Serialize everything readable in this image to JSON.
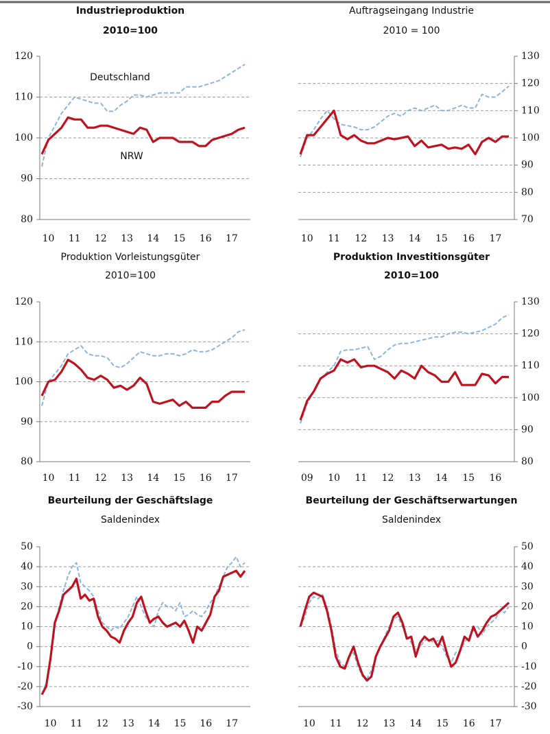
{
  "chart_data": [
    {
      "type": "line",
      "title": "Industrieproduktion",
      "subtitle": "2010=100",
      "categories": [
        null,
        "10",
        null,
        null,
        null,
        "11",
        null,
        null,
        null,
        "12",
        null,
        null,
        null,
        "13",
        null,
        null,
        null,
        "14",
        null,
        null,
        null,
        "15",
        null,
        null,
        null,
        "16",
        null,
        null,
        null,
        "17",
        null,
        null
      ],
      "series": [
        {
          "name": "Deutschland",
          "color": "#8ab4e0",
          "line_style": "dashed",
          "values": [
            93,
            100,
            103,
            106,
            108,
            110,
            109.5,
            109,
            108.5,
            108.5,
            106.5,
            106.5,
            108,
            109,
            110.5,
            110.5,
            110,
            110.5,
            111,
            111,
            111,
            111,
            112.5,
            112.5,
            112.5,
            113,
            113.5,
            114,
            115,
            116,
            117,
            118
          ]
        },
        {
          "name": "NRW",
          "color": "#c0111f",
          "line_style": "solid",
          "values": [
            96,
            99.5,
            101,
            102.5,
            105,
            104.5,
            104.5,
            102.5,
            102.5,
            103,
            103,
            102.5,
            102,
            101.5,
            101,
            102.5,
            102,
            99,
            100,
            100,
            100,
            99,
            99,
            99,
            98,
            98,
            99.5,
            100,
            100.5,
            101,
            102,
            102.5
          ]
        }
      ],
      "ylim": [
        80,
        120
      ],
      "yticks": [
        80,
        90,
        100,
        110,
        120
      ],
      "grid": true,
      "y_axis_side": "left"
    },
    {
      "type": "line",
      "title": "Auftragseingang Industrie",
      "subtitle": "2010 = 100",
      "categories": [
        null,
        "10",
        null,
        null,
        null,
        "11",
        null,
        null,
        null,
        "12",
        null,
        null,
        null,
        "13",
        null,
        null,
        null,
        "14",
        null,
        null,
        null,
        "15",
        null,
        null,
        null,
        "16",
        null,
        null,
        null,
        "17",
        null,
        null
      ],
      "series": [
        {
          "color": "#8ab4e0",
          "line_style": "dashed",
          "values": [
            93,
            100,
            103,
            107,
            110,
            107,
            105,
            104.5,
            104,
            103,
            103,
            104,
            106,
            108,
            109,
            108,
            110,
            111,
            110,
            111,
            112,
            110,
            110,
            111,
            112,
            111,
            111,
            116,
            115,
            115,
            117,
            119
          ]
        },
        {
          "color": "#c0111f",
          "line_style": "solid",
          "values": [
            94,
            101,
            101,
            104,
            107,
            110,
            101,
            99.5,
            101,
            99,
            98,
            98,
            99,
            100,
            99.5,
            100,
            100.5,
            97,
            99,
            96.5,
            97,
            97.5,
            96,
            96.5,
            96,
            97.5,
            94,
            98.5,
            100,
            98.5,
            100.5,
            100.5
          ]
        }
      ],
      "ylim": [
        70,
        130
      ],
      "yticks": [
        70,
        80,
        90,
        100,
        110,
        120,
        130
      ],
      "grid": true,
      "y_axis_side": "right"
    },
    {
      "type": "line",
      "title": "Produktion Vorleistungsgüter",
      "subtitle": "2010=100",
      "categories": [
        null,
        "10",
        null,
        null,
        null,
        "11",
        null,
        null,
        null,
        "12",
        null,
        null,
        null,
        "13",
        null,
        null,
        null,
        "14",
        null,
        null,
        null,
        "15",
        null,
        null,
        null,
        "16",
        null,
        null,
        null,
        "17",
        null,
        null
      ],
      "series": [
        {
          "color": "#8ab4e0",
          "line_style": "dashed",
          "values": [
            94,
            100,
            102,
            104,
            107,
            108,
            109,
            107,
            106.5,
            106.5,
            106,
            104,
            103.5,
            104.5,
            106,
            107.5,
            107,
            106.5,
            106.5,
            107,
            107,
            106.5,
            107,
            108,
            107.5,
            107.5,
            108,
            109,
            110,
            111,
            112.5,
            113
          ]
        },
        {
          "color": "#c0111f",
          "line_style": "solid",
          "values": [
            96.5,
            100,
            100.5,
            102.5,
            105.5,
            104.5,
            103,
            101,
            100.5,
            101.5,
            100.5,
            98.5,
            99,
            98,
            99,
            101,
            99.5,
            95,
            94.5,
            95,
            95.5,
            94,
            95,
            93.5,
            93.5,
            93.5,
            95,
            95,
            96.5,
            97.5,
            97.5,
            97.5
          ]
        }
      ],
      "ylim": [
        80,
        120
      ],
      "yticks": [
        80,
        90,
        100,
        110,
        120
      ],
      "grid": true,
      "y_axis_side": "left"
    },
    {
      "type": "line",
      "title": "Produktion Investitionsgüter",
      "subtitle": "2010=100",
      "categories": [
        null,
        "09",
        null,
        null,
        null,
        "10",
        null,
        null,
        null,
        "11",
        null,
        null,
        null,
        "12",
        null,
        null,
        null,
        "13",
        null,
        null,
        null,
        "14",
        null,
        null,
        null,
        "15",
        null,
        null,
        null,
        "16",
        null,
        null
      ],
      "series": [
        {
          "color": "#8ab4e0",
          "line_style": "dashed",
          "values": [
            92,
            98,
            102,
            106,
            108,
            110,
            114.5,
            115,
            115,
            115.5,
            116,
            112,
            113,
            115,
            116.5,
            117,
            117,
            117.5,
            118,
            118.5,
            119,
            119,
            120,
            120.5,
            120.5,
            120,
            120.5,
            121,
            122,
            123,
            125,
            126
          ]
        },
        {
          "color": "#c0111f",
          "line_style": "solid",
          "values": [
            93,
            99,
            102,
            106,
            107.5,
            108.5,
            112,
            111,
            112,
            109.5,
            110,
            110,
            109,
            108,
            106,
            108.5,
            107.5,
            106,
            110,
            108,
            107,
            105,
            105,
            108,
            104,
            104,
            104,
            107.5,
            107,
            104.5,
            106.5,
            106.5
          ]
        }
      ],
      "ylim": [
        80,
        130
      ],
      "yticks": [
        80,
        90,
        100,
        110,
        120,
        130
      ],
      "grid": true,
      "y_axis_side": "right"
    },
    {
      "type": "line",
      "title": "Beurteilung der Geschäftslage",
      "subtitle": "Saldenindex",
      "categories": [
        null,
        null,
        "10",
        null,
        null,
        null,
        null,
        null,
        "11",
        null,
        null,
        null,
        null,
        null,
        "12",
        null,
        null,
        null,
        null,
        null,
        "13",
        null,
        null,
        null,
        null,
        null,
        "14",
        null,
        null,
        null,
        null,
        null,
        "15",
        null,
        null,
        null,
        null,
        null,
        "16",
        null,
        null,
        null,
        null,
        null,
        "17",
        null,
        null,
        null
      ],
      "series": [
        {
          "color": "#8ab4e0",
          "line_style": "dashed",
          "values": [
            -24,
            -18,
            -5,
            10,
            20,
            28,
            35,
            40,
            42,
            32,
            30,
            28,
            25,
            18,
            12,
            10,
            8,
            10,
            9,
            12,
            15,
            20,
            25,
            20,
            15,
            12,
            10,
            18,
            22,
            20,
            20,
            18,
            22,
            15,
            16,
            18,
            16,
            15,
            18,
            22,
            25,
            30,
            35,
            40,
            42,
            45,
            40,
            42
          ]
        },
        {
          "color": "#c0111f",
          "line_style": "solid",
          "values": [
            -24,
            -20,
            -6,
            12,
            18,
            26,
            28,
            30,
            34,
            24,
            26,
            23,
            24,
            15,
            10,
            8,
            5,
            4,
            2,
            8,
            12,
            15,
            22,
            25,
            18,
            12,
            14,
            15,
            12,
            10,
            11,
            12,
            10,
            13,
            8,
            2,
            10,
            8,
            12,
            16,
            25,
            28,
            35,
            36,
            37,
            38,
            35,
            38
          ]
        }
      ],
      "ylim": [
        -30,
        50
      ],
      "yticks": [
        -30,
        -20,
        -10,
        0,
        10,
        20,
        30,
        40,
        50
      ],
      "grid": true,
      "y_axis_side": "left"
    },
    {
      "type": "line",
      "title": "Beurteilung der Geschäftserwartungen",
      "subtitle": "Saldenindex",
      "categories": [
        null,
        null,
        "10",
        null,
        null,
        null,
        null,
        null,
        "11",
        null,
        null,
        null,
        null,
        null,
        "12",
        null,
        null,
        null,
        null,
        null,
        "13",
        null,
        null,
        null,
        null,
        null,
        "14",
        null,
        null,
        null,
        null,
        null,
        "15",
        null,
        null,
        null,
        null,
        null,
        "16",
        null,
        null,
        null,
        null,
        null,
        "17",
        null,
        null,
        null
      ],
      "series": [
        {
          "color": "#8ab4e0",
          "line_style": "dashed",
          "values": [
            10,
            15,
            22,
            25,
            24,
            26,
            20,
            10,
            -2,
            -8,
            -10,
            -5,
            -3,
            -10,
            -15,
            -16,
            -12,
            -5,
            0,
            5,
            10,
            14,
            15,
            10,
            5,
            2,
            -2,
            0,
            3,
            4,
            2,
            3,
            0,
            -5,
            -8,
            -3,
            -2,
            2,
            5,
            8,
            10,
            6,
            10,
            12,
            14,
            18,
            17,
            20
          ]
        },
        {
          "color": "#c0111f",
          "line_style": "solid",
          "values": [
            10,
            18,
            25,
            27,
            26,
            25,
            18,
            8,
            -5,
            -10,
            -11,
            -5,
            0,
            -8,
            -14,
            -17,
            -15,
            -5,
            0,
            4,
            8,
            15,
            17,
            12,
            4,
            5,
            -5,
            2,
            5,
            3,
            4,
            0,
            5,
            -3,
            -10,
            -8,
            -2,
            5,
            3,
            10,
            5,
            8,
            12,
            15,
            16,
            18,
            20,
            22
          ]
        }
      ],
      "ylim": [
        -30,
        50
      ],
      "yticks": [
        -30,
        -20,
        -10,
        0,
        10,
        20,
        30,
        40,
        50
      ],
      "grid": true,
      "y_axis_side": "right"
    }
  ]
}
